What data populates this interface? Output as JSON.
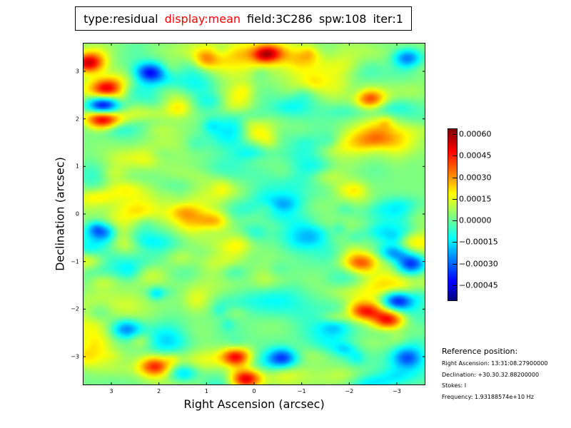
{
  "title": {
    "type": "type:residual",
    "display": "display:mean",
    "field": "field:3C286",
    "spw": "spw:108",
    "iter": "iter:1",
    "display_color": "#ff0000"
  },
  "chart_data": {
    "type": "heatmap",
    "title": "type:residual display:mean field:3C286 spw:108 iter:1",
    "xlabel": "Right Ascension (arcsec)",
    "ylabel": "Declination (arcsec)",
    "xlim": [
      3.6,
      -3.6
    ],
    "ylim": [
      -3.6,
      3.6
    ],
    "x_ticks": [
      3,
      2,
      1,
      0,
      -1,
      -2,
      -3
    ],
    "x_tick_labels": [
      "3",
      "2",
      "1",
      "0",
      "−1",
      "−2",
      "−3"
    ],
    "y_ticks": [
      3,
      2,
      1,
      0,
      -1,
      -2,
      -3
    ],
    "y_tick_labels": [
      "3",
      "2",
      "1",
      "0",
      "−1",
      "−2",
      "−3"
    ],
    "colormap": "jet",
    "colorbar": {
      "range": [
        -0.00056,
        0.00064
      ],
      "ticks": [
        0.0006,
        0.00045,
        0.0003,
        0.00015,
        0.0,
        -0.00015,
        -0.0003,
        -0.00045
      ],
      "tick_labels": [
        "0.00060",
        "0.00045",
        "0.00030",
        "0.00015",
        "0.00000",
        "−0.00015",
        "−0.00030",
        "−0.00045"
      ]
    }
  },
  "reference": {
    "header": "Reference position:",
    "ra": "Right Ascension: 13:31:08.27900000",
    "dec": "Declination: +30.30.32.88200000",
    "stokes": "Stokes: I",
    "frequency": "Frequency: 1.93188574e+10 Hz"
  }
}
